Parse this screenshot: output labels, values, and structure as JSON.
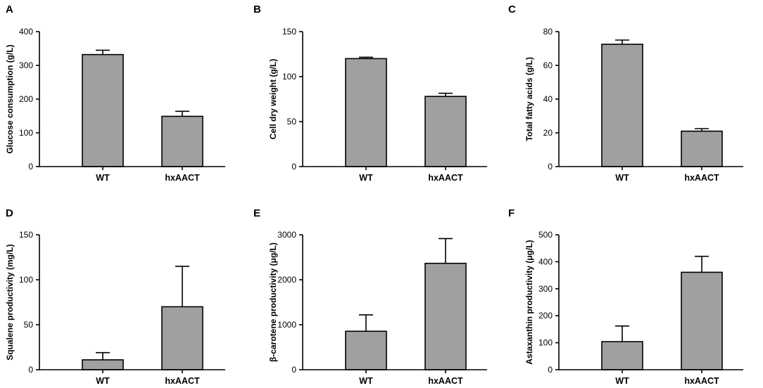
{
  "chart_data": [
    {
      "type": "bar",
      "panel": "A",
      "categories": [
        "WT",
        "hxAACT"
      ],
      "values": [
        332,
        149
      ],
      "errors": [
        13,
        15
      ],
      "ylabel": "Glucose consumption (g/L)",
      "xlabel": "",
      "ylim": [
        0,
        400
      ],
      "yticks": [
        0,
        100,
        200,
        300,
        400
      ]
    },
    {
      "type": "bar",
      "panel": "B",
      "categories": [
        "WT",
        "hxAACT"
      ],
      "values": [
        120,
        78
      ],
      "errors": [
        1.5,
        3.5
      ],
      "ylabel": "Cell dry weight (g/L)",
      "xlabel": "",
      "ylim": [
        0,
        150
      ],
      "yticks": [
        0,
        50,
        100,
        150
      ]
    },
    {
      "type": "bar",
      "panel": "C",
      "categories": [
        "WT",
        "hxAACT"
      ],
      "values": [
        72.5,
        21
      ],
      "errors": [
        2.5,
        1.5
      ],
      "ylabel": "Total fatty acids (g/L)",
      "xlabel": "",
      "ylim": [
        0,
        80
      ],
      "yticks": [
        0,
        20,
        40,
        60,
        80
      ]
    },
    {
      "type": "bar",
      "panel": "D",
      "categories": [
        "WT",
        "hxAACT"
      ],
      "values": [
        11,
        70
      ],
      "errors": [
        8,
        45
      ],
      "ylabel": "Squalene productivity (mg/L)",
      "xlabel": "",
      "ylim": [
        0,
        150
      ],
      "yticks": [
        0,
        50,
        100,
        150
      ]
    },
    {
      "type": "bar",
      "panel": "E",
      "categories": [
        "WT",
        "hxAACT"
      ],
      "values": [
        855,
        2365
      ],
      "errors": [
        365,
        550
      ],
      "ylabel": "β-carotene productivity (μg/L)",
      "xlabel": "",
      "ylim": [
        0,
        3000
      ],
      "yticks": [
        0,
        1000,
        2000,
        3000
      ]
    },
    {
      "type": "bar",
      "panel": "F",
      "categories": [
        "WT",
        "hxAACT"
      ],
      "values": [
        104,
        361
      ],
      "errors": [
        58,
        59
      ],
      "ylabel": "Astaxanthin productivity (μg/L)",
      "xlabel": "",
      "ylim": [
        0,
        500
      ],
      "yticks": [
        0,
        100,
        200,
        300,
        400,
        500
      ]
    }
  ]
}
